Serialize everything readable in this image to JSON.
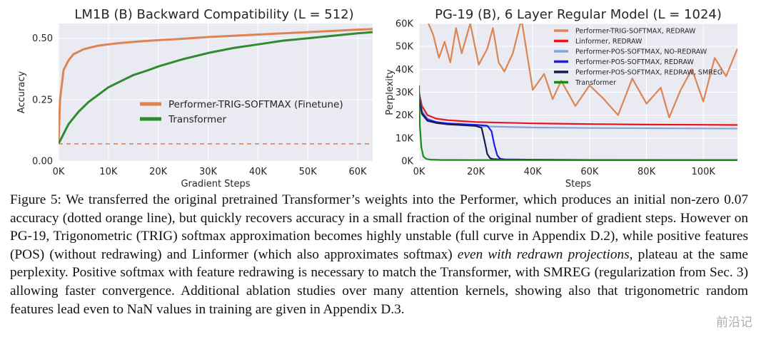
{
  "chart_data": [
    {
      "type": "line",
      "title": "LM1B (B) Backward Compatibility (L = 512)",
      "xlabel": "Gradient Steps",
      "ylabel": "Accuracy",
      "xlim": [
        0,
        63000
      ],
      "ylim": [
        0,
        0.56
      ],
      "xticks": [
        "0K",
        "10K",
        "20K",
        "30K",
        "40K",
        "50K",
        "60K"
      ],
      "yticks": [
        "0.00",
        "0.25",
        "0.50"
      ],
      "legend_position": "center-right",
      "series": [
        {
          "name": "Performer-TRIG-SOFTMAX (Finetune)",
          "color": "#dd8452",
          "x": [
            0,
            300,
            1000,
            2000,
            3000,
            5000,
            8000,
            12000,
            16000,
            20000,
            25000,
            30000,
            40000,
            50000,
            60000,
            63000
          ],
          "y": [
            0.07,
            0.25,
            0.37,
            0.41,
            0.435,
            0.455,
            0.47,
            0.48,
            0.487,
            0.492,
            0.498,
            0.505,
            0.515,
            0.525,
            0.535,
            0.537
          ]
        },
        {
          "name": "Transformer",
          "color": "#2e8b2e",
          "x": [
            0,
            1000,
            2000,
            4000,
            6000,
            8000,
            10000,
            12000,
            15000,
            18000,
            20000,
            25000,
            30000,
            35000,
            40000,
            45000,
            50000,
            55000,
            60000,
            63000
          ],
          "y": [
            0.07,
            0.11,
            0.15,
            0.2,
            0.24,
            0.27,
            0.3,
            0.32,
            0.35,
            0.37,
            0.385,
            0.415,
            0.44,
            0.46,
            0.475,
            0.49,
            0.5,
            0.51,
            0.52,
            0.525
          ]
        },
        {
          "name": "initial accuracy",
          "color": "#dd8452",
          "dashed": true,
          "x": [
            0,
            63000
          ],
          "y": [
            0.07,
            0.07
          ]
        }
      ]
    },
    {
      "type": "line",
      "title": "PG-19 (B), 6 Layer Regular Model (L = 1024)",
      "xlabel": "Steps",
      "ylabel": "Perplexity",
      "xlim": [
        0,
        112000
      ],
      "ylim": [
        0,
        60000
      ],
      "xticks": [
        "0K",
        "20K",
        "40K",
        "60K",
        "80K",
        "100K"
      ],
      "yticks": [
        "0K",
        "10K",
        "20K",
        "30K",
        "40K",
        "50K",
        "60K"
      ],
      "legend_position": "top-right",
      "series": [
        {
          "name": "Performer-TRIG-SOFTMAX, REDRAW",
          "color": "#dd8452",
          "x": [
            3000,
            5000,
            7000,
            9000,
            11000,
            13000,
            15000,
            18000,
            21000,
            24000,
            26000,
            28000,
            30000,
            33000,
            36000,
            40000,
            44000,
            47000,
            50000,
            55000,
            60000,
            65000,
            70000,
            75000,
            80000,
            85000,
            88000,
            92000,
            96000,
            100000,
            104000,
            108000,
            112000
          ],
          "y": [
            61000,
            55000,
            45000,
            52000,
            43000,
            58000,
            47000,
            60000,
            42000,
            49000,
            58000,
            43000,
            39000,
            47000,
            62000,
            31000,
            38000,
            27000,
            35000,
            24000,
            33000,
            27000,
            20000,
            36000,
            25000,
            32000,
            19000,
            31000,
            40000,
            26000,
            45000,
            37000,
            49000
          ]
        },
        {
          "name": "Linformer, REDRAW",
          "color": "#e8141b",
          "x": [
            0,
            1000,
            3000,
            6000,
            10000,
            20000,
            40000,
            60000,
            80000,
            100000,
            112000
          ],
          "y": [
            30000,
            24000,
            20000,
            18500,
            17800,
            17000,
            16400,
            16100,
            15900,
            15800,
            15700
          ]
        },
        {
          "name": "Performer-POS-SOFTMAX, NO-REDRAW",
          "color": "#7fa6de",
          "x": [
            0,
            1000,
            3000,
            6000,
            10000,
            20000,
            40000,
            60000,
            80000,
            100000,
            112000
          ],
          "y": [
            29000,
            22000,
            18500,
            17000,
            16000,
            15200,
            14600,
            14400,
            14300,
            14200,
            14150
          ]
        },
        {
          "name": "Performer-POS-SOFTMAX, REDRAW",
          "color": "#1b1bf0",
          "x": [
            0,
            1000,
            3000,
            6000,
            10000,
            16000,
            20000,
            24000,
            25500,
            26500,
            27500,
            28500,
            30000,
            40000,
            60000,
            80000,
            100000,
            112000
          ],
          "y": [
            29000,
            21000,
            18000,
            17000,
            16400,
            16000,
            15800,
            15400,
            13000,
            7000,
            2500,
            1000,
            700,
            550,
            450,
            420,
            400,
            390
          ]
        },
        {
          "name": "Performer-POS-SOFTMAX, REDRAW, SMREG",
          "color": "#1a1a50",
          "x": [
            0,
            1000,
            3000,
            6000,
            10000,
            16000,
            20000,
            22000,
            23000,
            24000,
            25000,
            26000,
            30000,
            40000,
            60000,
            80000,
            100000,
            112000
          ],
          "y": [
            28000,
            20500,
            17500,
            16600,
            16000,
            15600,
            15300,
            14500,
            9000,
            3000,
            1200,
            800,
            600,
            500,
            430,
            400,
            380,
            370
          ]
        },
        {
          "name": "Transformer",
          "color": "#168c16",
          "x": [
            0,
            300,
            800,
            1500,
            2500,
            4000,
            8000,
            20000,
            60000,
            112000
          ],
          "y": [
            33000,
            15000,
            6000,
            2000,
            900,
            600,
            450,
            400,
            380,
            370
          ]
        }
      ]
    }
  ],
  "caption": {
    "label": "Figure 5:",
    "text_1": " We transferred the original pretrained Transformer’s weights into the Performer, which produces an initial non-zero 0.07 accuracy (dotted orange line), but quickly recovers accuracy in a small fraction of the original number of gradient steps. However on PG-19, Trigonometric (TRIG) softmax approximation becomes highly unstable (full curve in Appendix D.2), while positive features (POS) (without redrawing) and Linformer (which also approximates softmax) ",
    "emphasis": "even with redrawn projections",
    "text_2": ", plateau at the same perplexity. Positive softmax with feature redrawing is necessary to match the Transformer, with SMREG (regularization from Sec. 3) allowing faster convergence. Additional ablation studies over many attention kernels, showing also that trigonometric random features lead even to NaN values in training are given in Appendix D.3."
  },
  "watermark": "前沿记"
}
